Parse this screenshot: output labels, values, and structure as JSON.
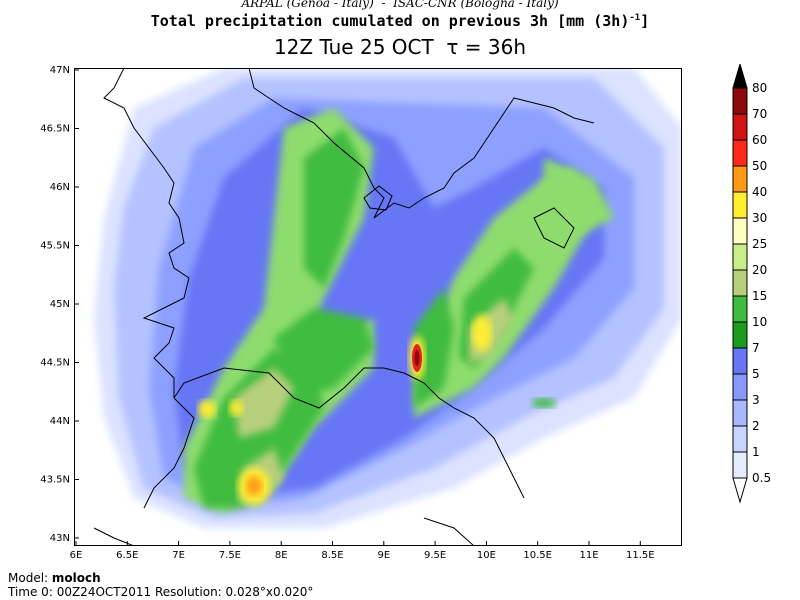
{
  "header": {
    "institutions": "ARPAL (Genoa - Italy)  -  ISAC-CNR (Bologna - Italy)",
    "title": "Total precipitation cumulated on previous 3h [mm (3h)",
    "title_superscript": "-1",
    "title_close": "]",
    "time_line": "12Z Tue 25 OCT  τ = 36h"
  },
  "map": {
    "lat_labels": [
      "47N",
      "46.5N",
      "46N",
      "45.5N",
      "45N",
      "44.5N",
      "44N",
      "43.5N",
      "43N"
    ],
    "lon_labels": [
      "6E",
      "6.5E",
      "7E",
      "7.5E",
      "8E",
      "8.5E",
      "9E",
      "9.5E",
      "10E",
      "10.5E",
      "11E",
      "11.5E"
    ],
    "colors": {
      "lightest": "#dce2ff",
      "light_blue": "#b4c2ff",
      "mid_blue": "#8da0ff",
      "blue": "#6676f5",
      "light_green": "#8fdc6e",
      "green": "#3fbc3f",
      "olive": "#b7cf7b",
      "yellow": "#ffee30",
      "orange": "#ff9a14",
      "red": "#e61e1e",
      "dark_red": "#8c0a0a"
    }
  },
  "legend": {
    "levels": [
      "0.5",
      "1",
      "2",
      "3",
      "5",
      "7",
      "10",
      "15",
      "20",
      "25",
      "30",
      "40",
      "50",
      "60",
      "70",
      "80"
    ],
    "colors": [
      "#e6ecff",
      "#c8d4ff",
      "#a8b8ff",
      "#8898ff",
      "#6676f5",
      "#1b9c1b",
      "#3fbc3f",
      "#b7cf7b",
      "#c8ee8a",
      "#ffffc0",
      "#ffee30",
      "#ff9a14",
      "#ff2a1a",
      "#d21414",
      "#8c0a0a",
      "#000000"
    ]
  },
  "footer": {
    "model_label": "Model:",
    "model_value": "moloch",
    "time0_label": "Time 0:",
    "time0_value": "00Z24OCT2011",
    "resolution_label": "Resolution:",
    "resolution_value": "0.028°x0.020°"
  }
}
